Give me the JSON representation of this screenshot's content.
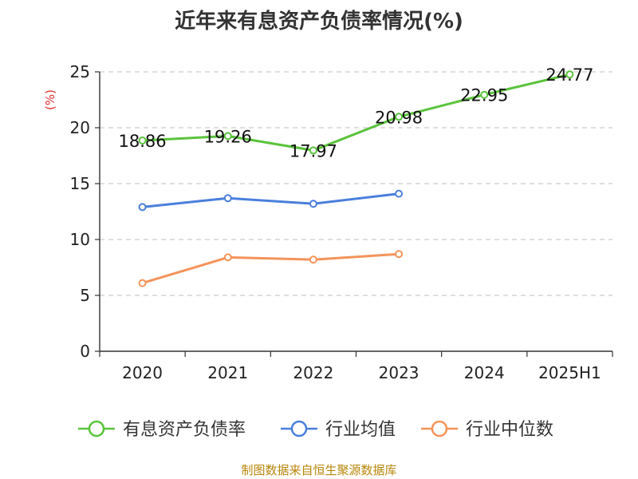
{
  "chart_data": {
    "type": "line",
    "title": "近年来有息资产负债率情况(%)",
    "ylabel": "(%)",
    "categories": [
      "2020",
      "2021",
      "2022",
      "2023",
      "2024",
      "2025H1"
    ],
    "yticks": [
      "0",
      "5",
      "10",
      "15",
      "20",
      "25"
    ],
    "ylim": [
      0,
      25
    ],
    "grid": "horizontal dashed",
    "legend_position": "bottom",
    "series": [
      {
        "name": "有息资产负债率",
        "color": "#5ac33c",
        "values": [
          18.86,
          19.26,
          17.97,
          20.98,
          22.95,
          24.77
        ],
        "labels": [
          "18.86",
          "19.26",
          "17.97",
          "20.98",
          "22.95",
          "24.77"
        ]
      },
      {
        "name": "行业均值",
        "color": "#4a7fdc",
        "values": [
          12.9,
          13.7,
          13.2,
          14.1,
          null,
          null
        ]
      },
      {
        "name": "行业中位数",
        "color": "#f4935a",
        "values": [
          6.1,
          8.4,
          8.2,
          8.7,
          null,
          null
        ]
      }
    ]
  },
  "footer": "制图数据来自恒生聚源数据库"
}
